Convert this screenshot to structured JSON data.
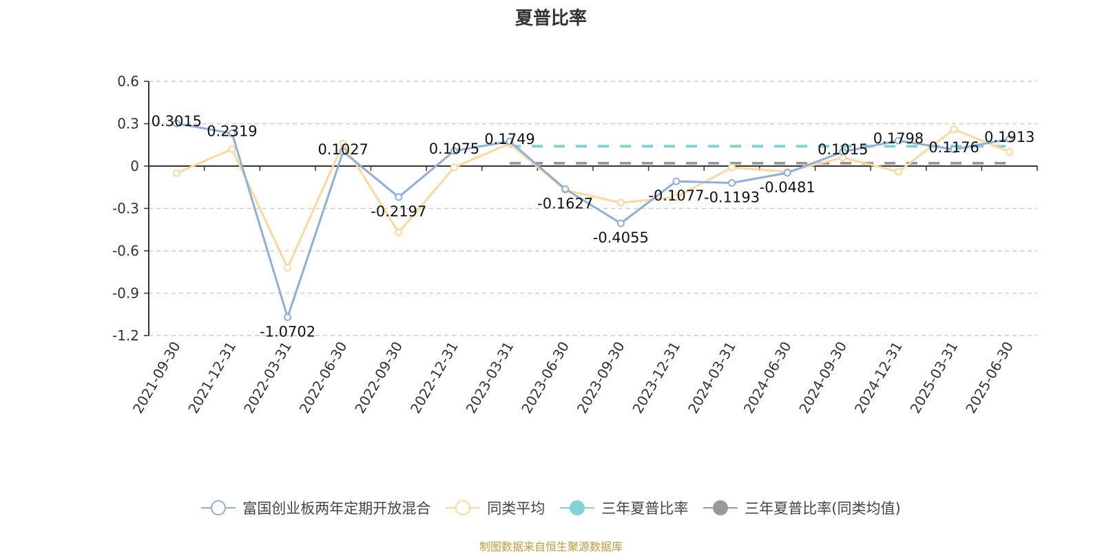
{
  "title": "夏普比率",
  "footer": "制图数据来自恒生聚源数据库",
  "colors": {
    "fund": "#8eaedb",
    "peer": "#fdd89a",
    "three_year": "#7fd3d6",
    "three_year_peer": "#999999",
    "grid": "#cccccc",
    "axis": "#333333"
  },
  "legend": [
    {
      "label": "富国创业板两年定期开放混合",
      "color": "#8eaedb",
      "filled": false
    },
    {
      "label": "同类平均",
      "color": "#fdd89a",
      "filled": false
    },
    {
      "label": "三年夏普比率",
      "color": "#7fd3d6",
      "filled": true
    },
    {
      "label": "三年夏普比率(同类均值)",
      "color": "#999999",
      "filled": true
    }
  ],
  "chart_data": {
    "type": "line",
    "title": "夏普比率",
    "xlabel": "",
    "ylabel": "",
    "ylim": [
      -1.2,
      0.6
    ],
    "yticks": [
      0.6,
      0.3,
      0,
      -0.3,
      -0.6,
      -0.9,
      -1.2
    ],
    "ytick_labels": [
      "0.6",
      "0.3",
      "0",
      "-0.3",
      "-0.6",
      "-0.9",
      "-1.2"
    ],
    "grid": true,
    "legend_position": "bottom",
    "categories": [
      "2021-09-30",
      "2021-12-31",
      "2022-03-31",
      "2022-06-30",
      "2022-09-30",
      "2022-12-31",
      "2023-03-31",
      "2023-06-30",
      "2023-09-30",
      "2023-12-31",
      "2024-03-31",
      "2024-06-30",
      "2024-09-30",
      "2024-12-31",
      "2025-03-31",
      "2025-06-30"
    ],
    "series": [
      {
        "name": "富国创业板两年定期开放混合",
        "values": [
          0.3015,
          0.2319,
          -1.0702,
          0.1027,
          -0.2197,
          0.1075,
          0.1749,
          -0.1627,
          -0.4055,
          -0.1077,
          -0.1193,
          -0.0481,
          0.1015,
          0.1798,
          0.1176,
          0.1913
        ],
        "labels": [
          "0.3015",
          "0.2319",
          "-1.0702",
          "0.1027",
          "-0.2197",
          "0.1075",
          "0.1749",
          "-0.1627",
          "-0.4055",
          "-0.1077",
          "-0.1193",
          "-0.0481",
          "0.1015",
          "0.1798",
          "0.1176",
          "0.1913"
        ]
      },
      {
        "name": "同类平均",
        "values": [
          -0.05,
          0.12,
          -0.72,
          0.16,
          -0.47,
          -0.01,
          0.16,
          -0.17,
          -0.26,
          -0.22,
          -0.01,
          -0.04,
          0.06,
          -0.04,
          0.26,
          0.1
        ]
      },
      {
        "name": "三年夏普比率",
        "value": 0.14,
        "from": "2023-03-31",
        "to": "2025-06-30",
        "style": "dashed"
      },
      {
        "name": "三年夏普比率(同类均值)",
        "value": 0.02,
        "from": "2023-03-31",
        "to": "2025-06-30",
        "style": "dashed"
      }
    ]
  }
}
